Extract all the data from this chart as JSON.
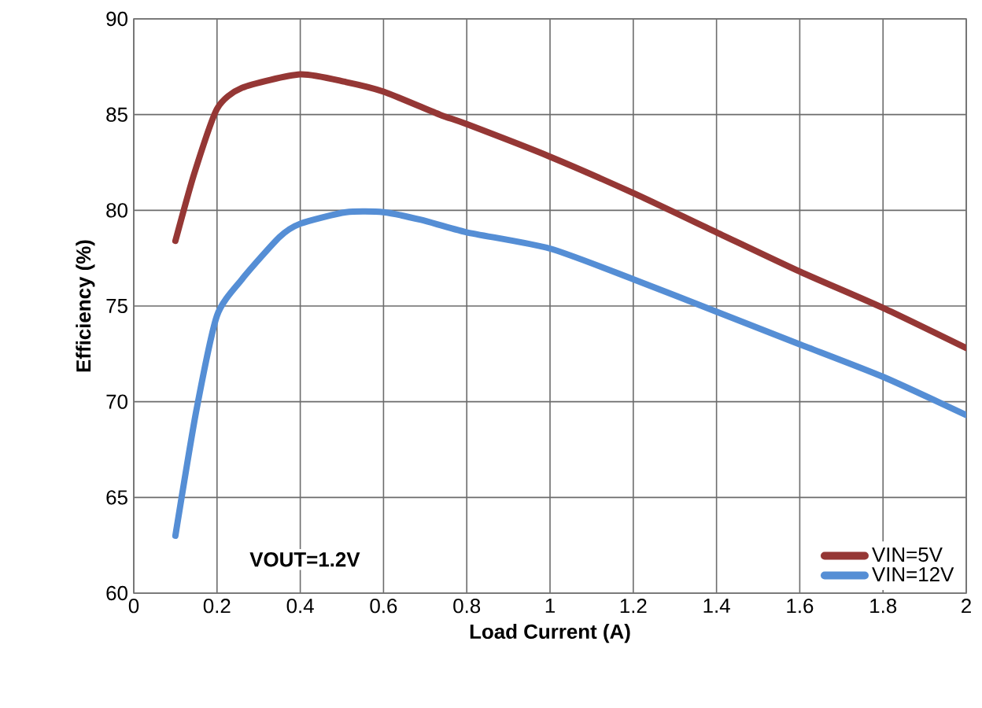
{
  "chart_data": {
    "type": "line",
    "xlabel": "Load Current (A)",
    "ylabel": "Efficiency (%)",
    "xlim": [
      0,
      2
    ],
    "ylim": [
      60,
      90
    ],
    "xticks": [
      0,
      0.2,
      0.4,
      0.6,
      0.8,
      1,
      1.2,
      1.4,
      1.6,
      1.8,
      2
    ],
    "yticks": [
      60,
      65,
      70,
      75,
      80,
      85,
      90
    ],
    "grid": true,
    "legend": "bottom right",
    "marker": "none",
    "line_style": "solid",
    "annotations": [
      "VOUT=1.2V"
    ],
    "series": [
      {
        "name": "VIN=5V",
        "color": "#953735",
        "x": [
          0.1,
          0.145,
          0.2,
          0.26,
          0.4,
          0.51,
          0.6,
          0.735,
          0.8,
          1.0,
          1.2,
          1.4,
          1.6,
          1.8,
          2.0
        ],
        "values": [
          78.4,
          81.9,
          85.3,
          86.4,
          87.1,
          86.7,
          86.2,
          85.0,
          84.5,
          82.8,
          80.9,
          78.85,
          76.8,
          74.9,
          72.8
        ]
      },
      {
        "name": "VIN=12V",
        "color": "#558ed5",
        "x": [
          0.1,
          0.15,
          0.2,
          0.26,
          0.35,
          0.4,
          0.51,
          0.6,
          0.69,
          0.8,
          1.0,
          1.2,
          1.4,
          1.6,
          1.8,
          2.0
        ],
        "values": [
          63.0,
          69.5,
          74.5,
          76.4,
          78.6,
          79.3,
          79.9,
          79.9,
          79.5,
          78.85,
          78.0,
          76.4,
          74.7,
          73.0,
          71.3,
          69.3
        ]
      }
    ]
  }
}
